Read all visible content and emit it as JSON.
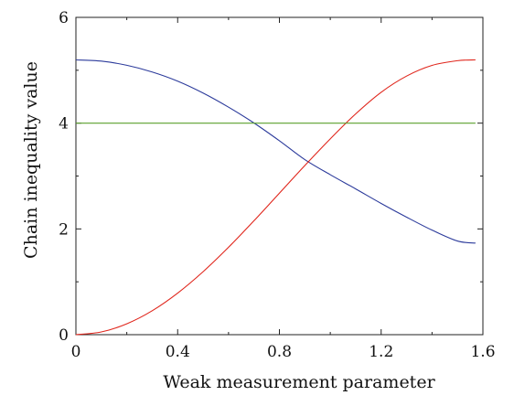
{
  "chart_data": {
    "type": "line",
    "title": "",
    "xlabel": "Weak measurement parameter",
    "ylabel": "Chain inequality value",
    "xlim": [
      0,
      1.6
    ],
    "ylim": [
      0,
      6
    ],
    "xticks": [
      0,
      0.4,
      0.8,
      1.2,
      1.6
    ],
    "xtick_labels": [
      "0",
      "0.4",
      "0.8",
      "1.2",
      "1.6"
    ],
    "yticks": [
      0,
      2,
      4,
      6
    ],
    "ytick_labels": [
      "0",
      "2",
      "4",
      "6"
    ],
    "grid": false,
    "legend": "none",
    "series": [
      {
        "color": "#2b3a9b",
        "x": [
          0,
          0.1,
          0.2,
          0.3,
          0.4,
          0.5,
          0.6,
          0.7,
          0.8,
          0.9,
          1.0,
          1.1,
          1.2,
          1.3,
          1.4,
          1.5,
          1.5708
        ],
        "y": [
          5.196,
          5.173,
          5.094,
          4.967,
          4.794,
          4.569,
          4.302,
          4.003,
          3.667,
          3.31,
          3.025,
          2.756,
          2.482,
          2.222,
          1.977,
          1.771,
          1.732
        ]
      },
      {
        "color": "#e0261c",
        "x": [
          0,
          0.1,
          0.2,
          0.3,
          0.4,
          0.5,
          0.6,
          0.7,
          0.8,
          0.9,
          1.0,
          1.1,
          1.2,
          1.3,
          1.4,
          1.5,
          1.5708
        ],
        "y": [
          0.0,
          0.052,
          0.206,
          0.453,
          0.786,
          1.191,
          1.653,
          2.154,
          2.676,
          3.199,
          3.703,
          4.176,
          4.584,
          4.89,
          5.092,
          5.181,
          5.196
        ]
      },
      {
        "color": "#5aa02c",
        "x": [
          0,
          1.5708
        ],
        "y": [
          4.0,
          4.0
        ]
      }
    ]
  }
}
